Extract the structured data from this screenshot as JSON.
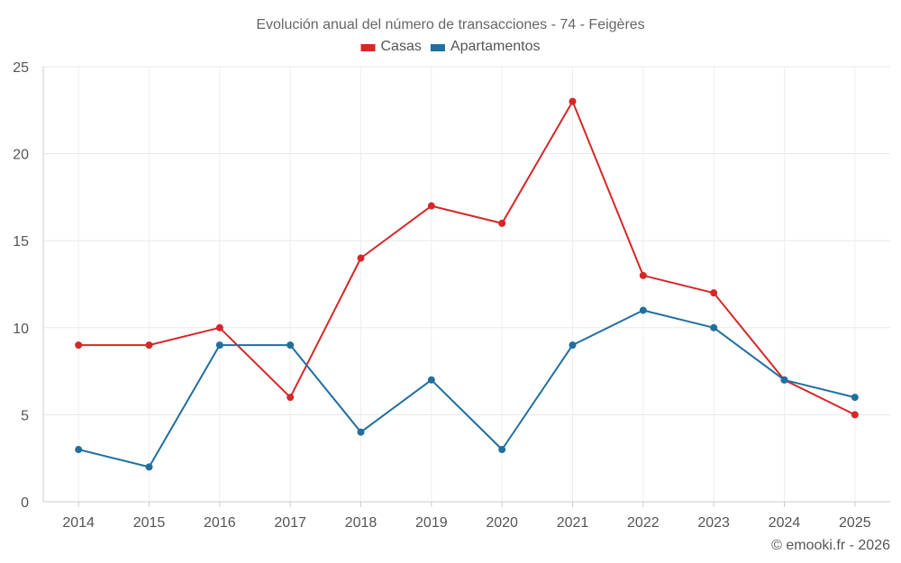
{
  "chart_data": {
    "type": "line",
    "title": "Evolución anual del número de transacciones - 74 - Feigères",
    "categories": [
      "2014",
      "2015",
      "2016",
      "2017",
      "2018",
      "2019",
      "2020",
      "2021",
      "2022",
      "2023",
      "2024",
      "2025"
    ],
    "series": [
      {
        "name": "Casas",
        "color": "#d62728",
        "values": [
          9,
          9,
          10,
          6,
          14,
          17,
          16,
          23,
          13,
          12,
          7,
          5
        ]
      },
      {
        "name": "Apartamentos",
        "color": "#1f6f9f",
        "values": [
          3,
          2,
          9,
          9,
          4,
          7,
          3,
          9,
          11,
          10,
          7,
          6
        ]
      }
    ],
    "xlabel": "",
    "ylabel": "",
    "ylim": [
      0,
      25
    ],
    "yticks": [
      0,
      5,
      10,
      15,
      20,
      25
    ],
    "grid": true,
    "legend_position": "top-center",
    "credit": "© emooki.fr - 2026"
  }
}
